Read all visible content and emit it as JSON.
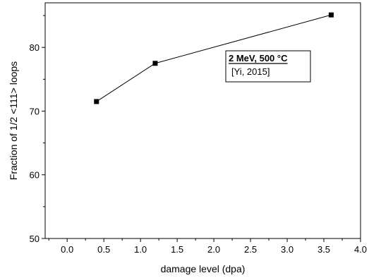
{
  "chart_data": {
    "type": "line",
    "title": "",
    "xlabel": "damage level (dpa)",
    "ylabel": "Fraction of 1/2 <111> loops",
    "xlim": [
      -0.3,
      4.0
    ],
    "ylim": [
      50,
      87
    ],
    "x_ticks": [
      0.0,
      0.5,
      1.0,
      1.5,
      2.0,
      2.5,
      3.0,
      3.5,
      4.0
    ],
    "x_tick_labels": [
      "0.0",
      "0.5",
      "1.0",
      "1.5",
      "2.0",
      "2.5",
      "3.0",
      "3.5",
      "4.0"
    ],
    "y_ticks": [
      50,
      60,
      70,
      80
    ],
    "y_tick_labels": [
      "50",
      "60",
      "70",
      "80"
    ],
    "grid": false,
    "marker": "square",
    "legend_placement": "top-right",
    "series": [
      {
        "x": [
          0.4,
          1.2,
          3.6
        ],
        "y": [
          71.5,
          77.5,
          85.1
        ]
      }
    ],
    "annotation": {
      "title": "2 MeV, 500 °C",
      "reference": "[Yi, 2015]"
    },
    "colors": {
      "line": "#000000",
      "marker": "#000000"
    }
  }
}
